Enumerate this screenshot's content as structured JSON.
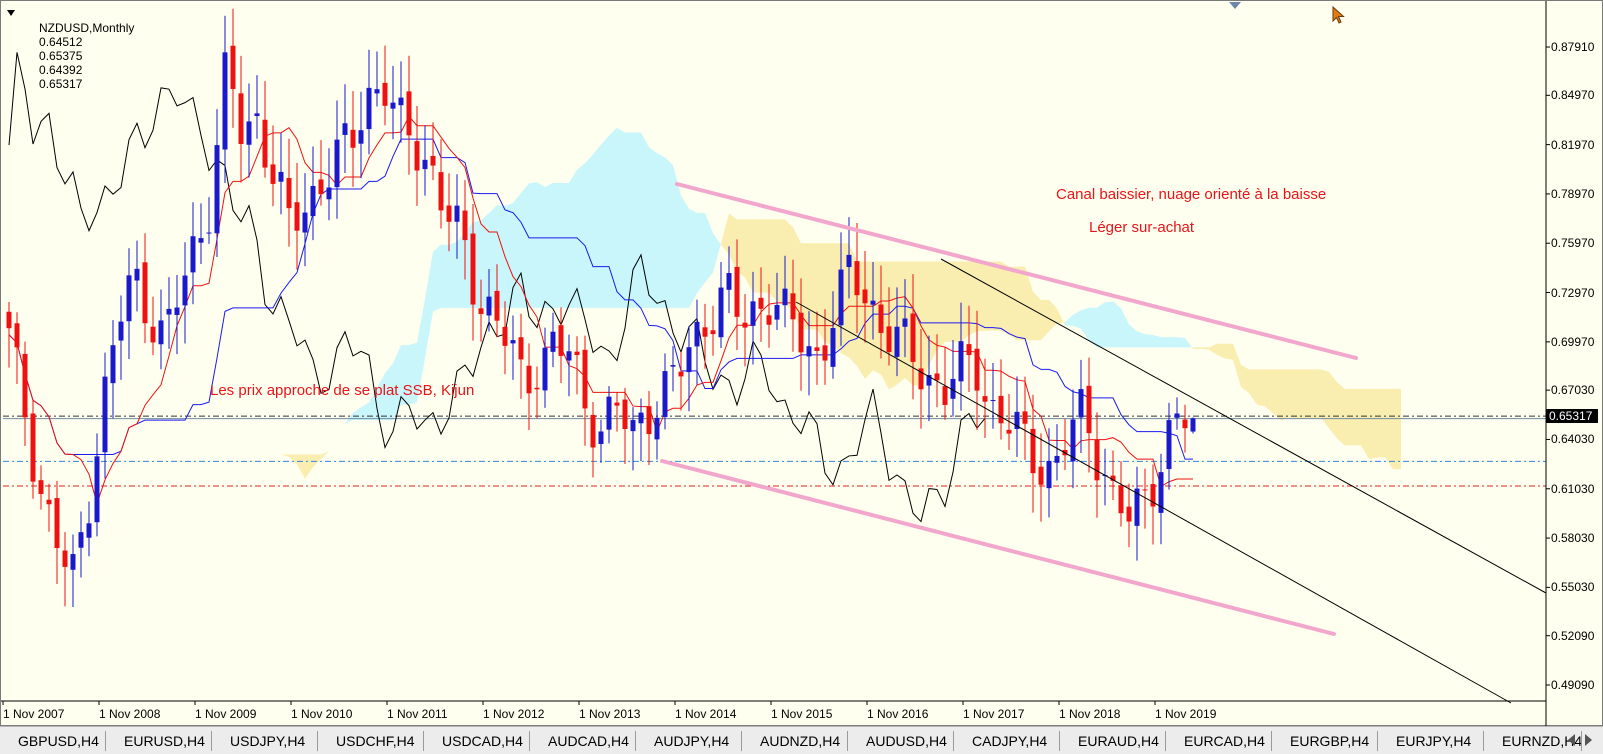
{
  "header": {
    "symbol": "NZDUSD,Monthly",
    "ohlc": [
      "0.64512",
      "0.65375",
      "0.64392",
      "0.65317"
    ]
  },
  "annotations": {
    "channel_note": "Canal baissier, nuage orienté à la baisse",
    "overbought_note": "Léger sur-achat",
    "price_note": "Les prix approche de se plat SSB, Kijun"
  },
  "price_axis": {
    "labels": [
      "0.87910",
      "0.84970",
      "0.81970",
      "0.78970",
      "0.75970",
      "0.72970",
      "0.69970",
      "0.67030",
      "0.64030",
      "0.61030",
      "0.58030",
      "0.55030",
      "0.52090",
      "0.49090"
    ],
    "current": "0.65317"
  },
  "date_axis": {
    "labels": [
      "1 Nov 2007",
      "1 Nov 2008",
      "1 Nov 2009",
      "1 Nov 2010",
      "1 Nov 2011",
      "1 Nov 2012",
      "1 Nov 2013",
      "1 Nov 2014",
      "1 Nov 2015",
      "1 Nov 2016",
      "1 Nov 2017",
      "1 Nov 2018",
      "1 Nov 2019"
    ]
  },
  "tabs": [
    "GBPUSD,H4",
    "EURUSD,H4",
    "USDJPY,H4",
    "USDCHF,H4",
    "USDCAD,H4",
    "AUDCAD,H4",
    "AUDJPY,H4",
    "AUDNZD,H4",
    "AUDUSD,H4",
    "CADJPY,H4",
    "EURAUD,H4",
    "EURCAD,H4",
    "EURGBP,H4",
    "EURJPY,H4",
    "EURNZD,H4"
  ],
  "colors": {
    "background": "#fffff0",
    "bull_candle": "#1a1acc",
    "bear_candle": "#ee1111",
    "tenkan": "#ee1111",
    "kijun": "#1a1aee",
    "chikou": "#000000",
    "cloud_bull": "#c8f6fb",
    "cloud_bear": "#f9eeb0",
    "channel_pink": "#f3a6cb",
    "annotation": "#e8141a"
  },
  "chart_data": {
    "type": "candlestick",
    "symbol": "NZDUSD",
    "timeframe": "Monthly",
    "ylim": [
      0.475,
      0.89
    ],
    "current_price": 0.65317,
    "last_bar": {
      "open": 0.64512,
      "high": 0.65375,
      "low": 0.64392,
      "close": 0.65317
    },
    "horizontal_levels": [
      0.6545,
      0.653,
      0.627,
      0.612
    ],
    "approx_closes": [
      0.7,
      0.66,
      0.61,
      0.58,
      0.55,
      0.6,
      0.66,
      0.71,
      0.74,
      0.72,
      0.7,
      0.73,
      0.76,
      0.79,
      0.87,
      0.82,
      0.84,
      0.8,
      0.77,
      0.78,
      0.8,
      0.81,
      0.82,
      0.85,
      0.86,
      0.83,
      0.82,
      0.81,
      0.78,
      0.76,
      0.73,
      0.72,
      0.7,
      0.67,
      0.69,
      0.7,
      0.69,
      0.66,
      0.65,
      0.66,
      0.64,
      0.66,
      0.67,
      0.68,
      0.7,
      0.72,
      0.73,
      0.71,
      0.72,
      0.73,
      0.71,
      0.7,
      0.69,
      0.72,
      0.74,
      0.73,
      0.71,
      0.7,
      0.69,
      0.68,
      0.67,
      0.68,
      0.69,
      0.66,
      0.65,
      0.64,
      0.63,
      0.62,
      0.64,
      0.66,
      0.63,
      0.6,
      0.59,
      0.61,
      0.63,
      0.65,
      0.6532
    ]
  }
}
